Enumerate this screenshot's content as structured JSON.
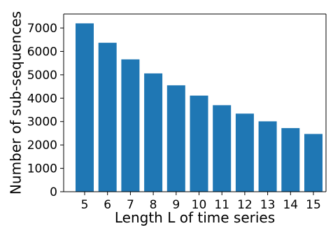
{
  "chart_data": {
    "type": "bar",
    "title": "",
    "xlabel": "Length L of time series",
    "ylabel": "Number of sub-sequences",
    "categories": [
      "5",
      "6",
      "7",
      "8",
      "9",
      "10",
      "11",
      "12",
      "13",
      "14",
      "15"
    ],
    "values": [
      7200,
      6370,
      5660,
      5060,
      4550,
      4110,
      3700,
      3340,
      3010,
      2720,
      2470
    ],
    "ylim": [
      0,
      7600
    ],
    "yticks": [
      0,
      1000,
      2000,
      3000,
      4000,
      5000,
      6000,
      7000
    ],
    "ytick_labels": [
      "0",
      "1000",
      "2000",
      "3000",
      "4000",
      "5000",
      "6000",
      "7000"
    ],
    "grid": false,
    "legend": "none",
    "bar_color": "#1f77b4"
  }
}
